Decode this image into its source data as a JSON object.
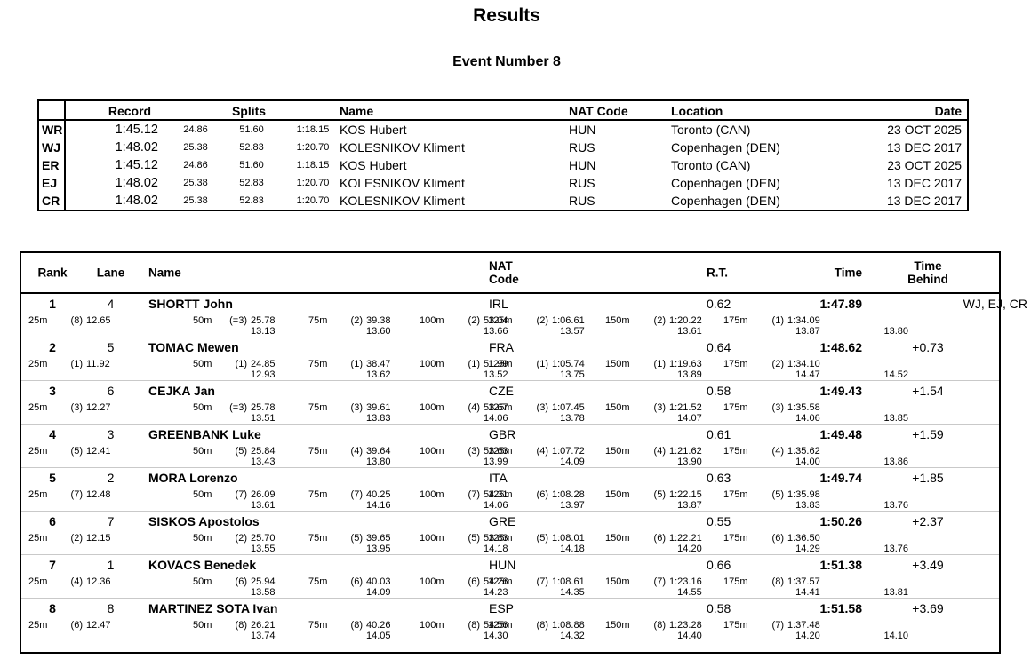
{
  "page": {
    "title": "Results",
    "subtitle": "Event Number 8"
  },
  "records_table": {
    "headers": {
      "record": "Record",
      "splits": "Splits",
      "name": "Name",
      "nat": "NAT Code",
      "location": "Location",
      "date": "Date"
    },
    "rows": [
      {
        "code": "WR",
        "time": "1:45.12",
        "splits": [
          "24.86",
          "51.60",
          "1:18.15"
        ],
        "name": "KOS Hubert",
        "nat": "HUN",
        "location": "Toronto (CAN)",
        "date": "23 OCT 2025"
      },
      {
        "code": "WJ",
        "time": "1:48.02",
        "splits": [
          "25.38",
          "52.83",
          "1:20.70"
        ],
        "name": "KOLESNIKOV Kliment",
        "nat": "RUS",
        "location": "Copenhagen (DEN)",
        "date": "13 DEC 2017"
      },
      {
        "code": "ER",
        "time": "1:45.12",
        "splits": [
          "24.86",
          "51.60",
          "1:18.15"
        ],
        "name": "KOS Hubert",
        "nat": "HUN",
        "location": "Toronto (CAN)",
        "date": "23 OCT 2025"
      },
      {
        "code": "EJ",
        "time": "1:48.02",
        "splits": [
          "25.38",
          "52.83",
          "1:20.70"
        ],
        "name": "KOLESNIKOV Kliment",
        "nat": "RUS",
        "location": "Copenhagen (DEN)",
        "date": "13 DEC 2017"
      },
      {
        "code": "CR",
        "time": "1:48.02",
        "splits": [
          "25.38",
          "52.83",
          "1:20.70"
        ],
        "name": "KOLESNIKOV Kliment",
        "nat": "RUS",
        "location": "Copenhagen (DEN)",
        "date": "13 DEC 2017"
      }
    ]
  },
  "results_table": {
    "headers": {
      "rank": "Rank",
      "lane": "Lane",
      "name": "Name",
      "nat": "NAT\nCode",
      "rt": "R.T.",
      "time": "Time",
      "behind": "Time\nBehind"
    },
    "rows": [
      {
        "rank": "1",
        "lane": "4",
        "name": "SHORTT John",
        "nat": "IRL",
        "rt": "0.62",
        "time": "1:47.89",
        "behind": "",
        "records": "WJ, EJ, CR",
        "final_split": "13.80",
        "splits": [
          {
            "dist": "25m",
            "pos": "(8)",
            "cum": "12.65",
            "sub": ""
          },
          {
            "dist": "50m",
            "pos": "(=3)",
            "cum": "25.78",
            "sub": "13.13"
          },
          {
            "dist": "75m",
            "pos": "(2)",
            "cum": "39.38",
            "sub": "13.60"
          },
          {
            "dist": "100m",
            "pos": "(2)",
            "cum": "53.04",
            "sub": "13.66"
          },
          {
            "dist": "125m",
            "pos": "(2)",
            "cum": "1:06.61",
            "sub": "13.57"
          },
          {
            "dist": "150m",
            "pos": "(2)",
            "cum": "1:20.22",
            "sub": "13.61"
          },
          {
            "dist": "175m",
            "pos": "(1)",
            "cum": "1:34.09",
            "sub": "13.87"
          }
        ]
      },
      {
        "rank": "2",
        "lane": "5",
        "name": "TOMAC Mewen",
        "nat": "FRA",
        "rt": "0.64",
        "time": "1:48.62",
        "behind": "+0.73",
        "records": "",
        "final_split": "14.52",
        "splits": [
          {
            "dist": "25m",
            "pos": "(1)",
            "cum": "11.92",
            "sub": ""
          },
          {
            "dist": "50m",
            "pos": "(1)",
            "cum": "24.85",
            "sub": "12.93"
          },
          {
            "dist": "75m",
            "pos": "(1)",
            "cum": "38.47",
            "sub": "13.62"
          },
          {
            "dist": "100m",
            "pos": "(1)",
            "cum": "51.99",
            "sub": "13.52"
          },
          {
            "dist": "125m",
            "pos": "(1)",
            "cum": "1:05.74",
            "sub": "13.75"
          },
          {
            "dist": "150m",
            "pos": "(1)",
            "cum": "1:19.63",
            "sub": "13.89"
          },
          {
            "dist": "175m",
            "pos": "(2)",
            "cum": "1:34.10",
            "sub": "14.47"
          }
        ]
      },
      {
        "rank": "3",
        "lane": "6",
        "name": "CEJKA Jan",
        "nat": "CZE",
        "rt": "0.58",
        "time": "1:49.43",
        "behind": "+1.54",
        "records": "",
        "final_split": "13.85",
        "splits": [
          {
            "dist": "25m",
            "pos": "(3)",
            "cum": "12.27",
            "sub": ""
          },
          {
            "dist": "50m",
            "pos": "(=3)",
            "cum": "25.78",
            "sub": "13.51"
          },
          {
            "dist": "75m",
            "pos": "(3)",
            "cum": "39.61",
            "sub": "13.83"
          },
          {
            "dist": "100m",
            "pos": "(4)",
            "cum": "53.67",
            "sub": "14.06"
          },
          {
            "dist": "125m",
            "pos": "(3)",
            "cum": "1:07.45",
            "sub": "13.78"
          },
          {
            "dist": "150m",
            "pos": "(3)",
            "cum": "1:21.52",
            "sub": "14.07"
          },
          {
            "dist": "175m",
            "pos": "(3)",
            "cum": "1:35.58",
            "sub": "14.06"
          }
        ]
      },
      {
        "rank": "4",
        "lane": "3",
        "name": "GREENBANK Luke",
        "nat": "GBR",
        "rt": "0.61",
        "time": "1:49.48",
        "behind": "+1.59",
        "records": "",
        "final_split": "13.86",
        "splits": [
          {
            "dist": "25m",
            "pos": "(5)",
            "cum": "12.41",
            "sub": ""
          },
          {
            "dist": "50m",
            "pos": "(5)",
            "cum": "25.84",
            "sub": "13.43"
          },
          {
            "dist": "75m",
            "pos": "(4)",
            "cum": "39.64",
            "sub": "13.80"
          },
          {
            "dist": "100m",
            "pos": "(3)",
            "cum": "53.63",
            "sub": "13.99"
          },
          {
            "dist": "125m",
            "pos": "(4)",
            "cum": "1:07.72",
            "sub": "14.09"
          },
          {
            "dist": "150m",
            "pos": "(4)",
            "cum": "1:21.62",
            "sub": "13.90"
          },
          {
            "dist": "175m",
            "pos": "(4)",
            "cum": "1:35.62",
            "sub": "14.00"
          }
        ]
      },
      {
        "rank": "5",
        "lane": "2",
        "name": "MORA Lorenzo",
        "nat": "ITA",
        "rt": "0.63",
        "time": "1:49.74",
        "behind": "+1.85",
        "records": "",
        "final_split": "13.76",
        "splits": [
          {
            "dist": "25m",
            "pos": "(7)",
            "cum": "12.48",
            "sub": ""
          },
          {
            "dist": "50m",
            "pos": "(7)",
            "cum": "26.09",
            "sub": "13.61"
          },
          {
            "dist": "75m",
            "pos": "(7)",
            "cum": "40.25",
            "sub": "14.16"
          },
          {
            "dist": "100m",
            "pos": "(7)",
            "cum": "54.31",
            "sub": "14.06"
          },
          {
            "dist": "125m",
            "pos": "(6)",
            "cum": "1:08.28",
            "sub": "13.97"
          },
          {
            "dist": "150m",
            "pos": "(5)",
            "cum": "1:22.15",
            "sub": "13.87"
          },
          {
            "dist": "175m",
            "pos": "(5)",
            "cum": "1:35.98",
            "sub": "13.83"
          }
        ]
      },
      {
        "rank": "6",
        "lane": "7",
        "name": "SISKOS Apostolos",
        "nat": "GRE",
        "rt": "0.55",
        "time": "1:50.26",
        "behind": "+2.37",
        "records": "",
        "final_split": "13.76",
        "splits": [
          {
            "dist": "25m",
            "pos": "(2)",
            "cum": "12.15",
            "sub": ""
          },
          {
            "dist": "50m",
            "pos": "(2)",
            "cum": "25.70",
            "sub": "13.55"
          },
          {
            "dist": "75m",
            "pos": "(5)",
            "cum": "39.65",
            "sub": "13.95"
          },
          {
            "dist": "100m",
            "pos": "(5)",
            "cum": "53.83",
            "sub": "14.18"
          },
          {
            "dist": "125m",
            "pos": "(5)",
            "cum": "1:08.01",
            "sub": "14.18"
          },
          {
            "dist": "150m",
            "pos": "(6)",
            "cum": "1:22.21",
            "sub": "14.20"
          },
          {
            "dist": "175m",
            "pos": "(6)",
            "cum": "1:36.50",
            "sub": "14.29"
          }
        ]
      },
      {
        "rank": "7",
        "lane": "1",
        "name": "KOVACS Benedek",
        "nat": "HUN",
        "rt": "0.66",
        "time": "1:51.38",
        "behind": "+3.49",
        "records": "",
        "final_split": "13.81",
        "splits": [
          {
            "dist": "25m",
            "pos": "(4)",
            "cum": "12.36",
            "sub": ""
          },
          {
            "dist": "50m",
            "pos": "(6)",
            "cum": "25.94",
            "sub": "13.58"
          },
          {
            "dist": "75m",
            "pos": "(6)",
            "cum": "40.03",
            "sub": "14.09"
          },
          {
            "dist": "100m",
            "pos": "(6)",
            "cum": "54.26",
            "sub": "14.23"
          },
          {
            "dist": "125m",
            "pos": "(7)",
            "cum": "1:08.61",
            "sub": "14.35"
          },
          {
            "dist": "150m",
            "pos": "(7)",
            "cum": "1:23.16",
            "sub": "14.55"
          },
          {
            "dist": "175m",
            "pos": "(8)",
            "cum": "1:37.57",
            "sub": "14.41"
          }
        ]
      },
      {
        "rank": "8",
        "lane": "8",
        "name": "MARTINEZ SOTA Ivan",
        "nat": "ESP",
        "rt": "0.58",
        "time": "1:51.58",
        "behind": "+3.69",
        "records": "",
        "final_split": "14.10",
        "splits": [
          {
            "dist": "25m",
            "pos": "(6)",
            "cum": "12.47",
            "sub": ""
          },
          {
            "dist": "50m",
            "pos": "(8)",
            "cum": "26.21",
            "sub": "13.74"
          },
          {
            "dist": "75m",
            "pos": "(8)",
            "cum": "40.26",
            "sub": "14.05"
          },
          {
            "dist": "100m",
            "pos": "(8)",
            "cum": "54.56",
            "sub": "14.30"
          },
          {
            "dist": "125m",
            "pos": "(8)",
            "cum": "1:08.88",
            "sub": "14.32"
          },
          {
            "dist": "150m",
            "pos": "(8)",
            "cum": "1:23.28",
            "sub": "14.40"
          },
          {
            "dist": "175m",
            "pos": "(7)",
            "cum": "1:37.48",
            "sub": "14.20"
          }
        ]
      }
    ]
  }
}
